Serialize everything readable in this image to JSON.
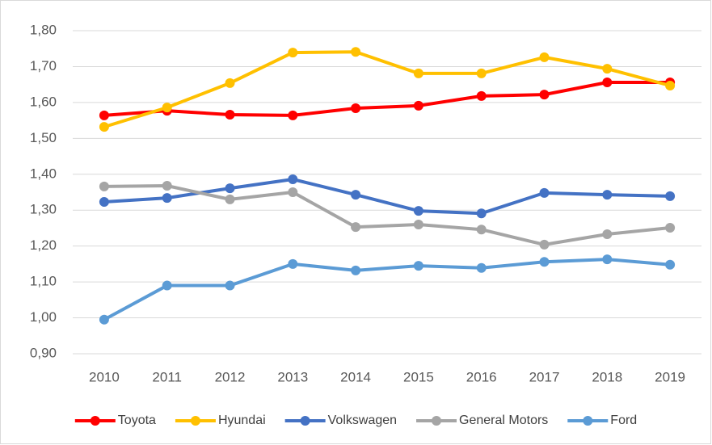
{
  "chart_data": {
    "type": "line",
    "categories": [
      "2010",
      "2011",
      "2012",
      "2013",
      "2014",
      "2015",
      "2016",
      "2017",
      "2018",
      "2019"
    ],
    "series": [
      {
        "name": "Toyota",
        "color": "#ff0000",
        "values": [
          1.564,
          1.577,
          1.566,
          1.564,
          1.584,
          1.591,
          1.618,
          1.622,
          1.656,
          1.656
        ]
      },
      {
        "name": "Hyundai",
        "color": "#ffc000",
        "values": [
          1.532,
          1.586,
          1.654,
          1.739,
          1.741,
          1.681,
          1.681,
          1.726,
          1.694,
          1.647
        ]
      },
      {
        "name": "Volkswagen",
        "color": "#4472c4",
        "values": [
          1.323,
          1.334,
          1.361,
          1.386,
          1.343,
          1.298,
          1.291,
          1.348,
          1.343,
          1.339
        ]
      },
      {
        "name": "General Motors",
        "color": "#a5a5a5",
        "values": [
          1.366,
          1.368,
          1.33,
          1.35,
          1.253,
          1.26,
          1.246,
          1.204,
          1.233,
          1.251
        ]
      },
      {
        "name": "Ford",
        "color": "#5b9bd5",
        "values": [
          0.995,
          1.09,
          1.09,
          1.15,
          1.132,
          1.145,
          1.139,
          1.156,
          1.163,
          1.148
        ]
      }
    ],
    "ylim": [
      0.9,
      1.8
    ],
    "yticks": [
      {
        "value": 0.9,
        "label": "0,90"
      },
      {
        "value": 1.0,
        "label": "1,00"
      },
      {
        "value": 1.1,
        "label": "1,10"
      },
      {
        "value": 1.2,
        "label": "1,20"
      },
      {
        "value": 1.3,
        "label": "1,30"
      },
      {
        "value": 1.4,
        "label": "1,40"
      },
      {
        "value": 1.5,
        "label": "1,50"
      },
      {
        "value": 1.6,
        "label": "1,60"
      },
      {
        "value": 1.7,
        "label": "1,70"
      },
      {
        "value": 1.8,
        "label": "1,80"
      }
    ],
    "grid": true,
    "legend": "bottom"
  }
}
